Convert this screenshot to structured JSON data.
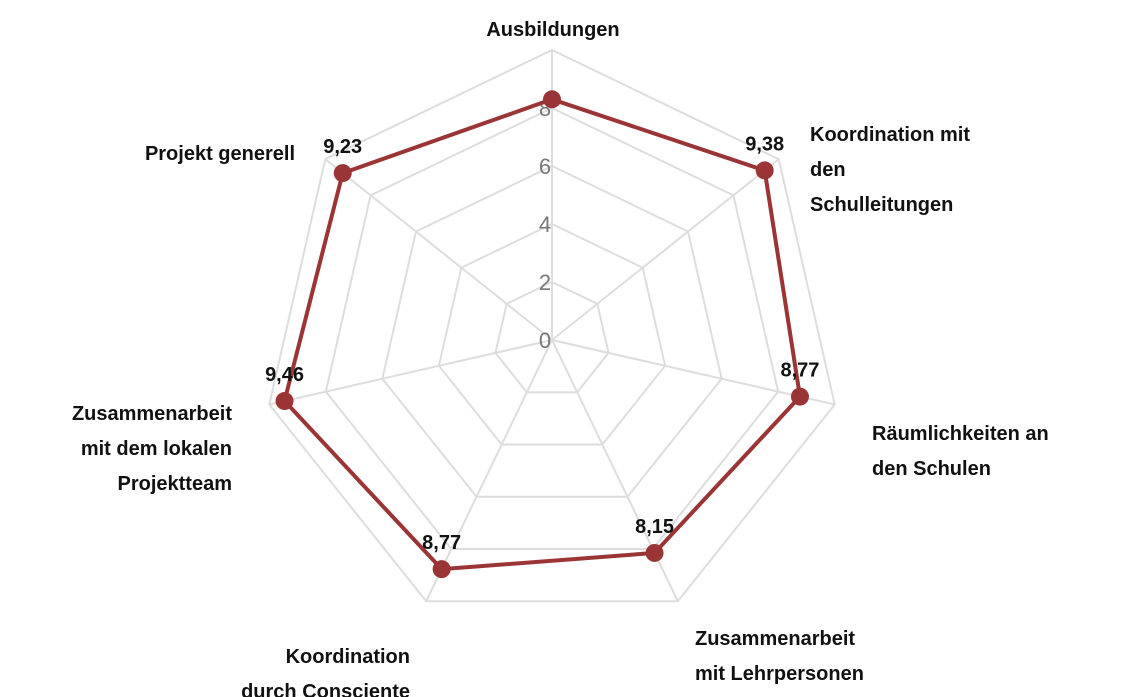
{
  "chart_data": {
    "type": "radar",
    "categories": [
      "Ausbildungen",
      "Koordination mit den Schulleitungen",
      "Räumlichkeiten an den Schulen",
      "Zusammenarbeit mit Lehrpersonen",
      "Koordination durch Consciente",
      "Zusammenarbeit mit dem lokalen Projektteam",
      "Projekt generell"
    ],
    "values": [
      8.3,
      9.38,
      8.77,
      8.15,
      8.77,
      9.46,
      9.23
    ],
    "value_labels": [
      null,
      "9,38",
      "8,77",
      "8,15",
      "8,77",
      "9,46",
      "9,23"
    ],
    "color": "#9b3535",
    "ylim": [
      0,
      10
    ],
    "yticks": [
      0,
      2,
      4,
      6,
      8
    ],
    "grid": true
  }
}
